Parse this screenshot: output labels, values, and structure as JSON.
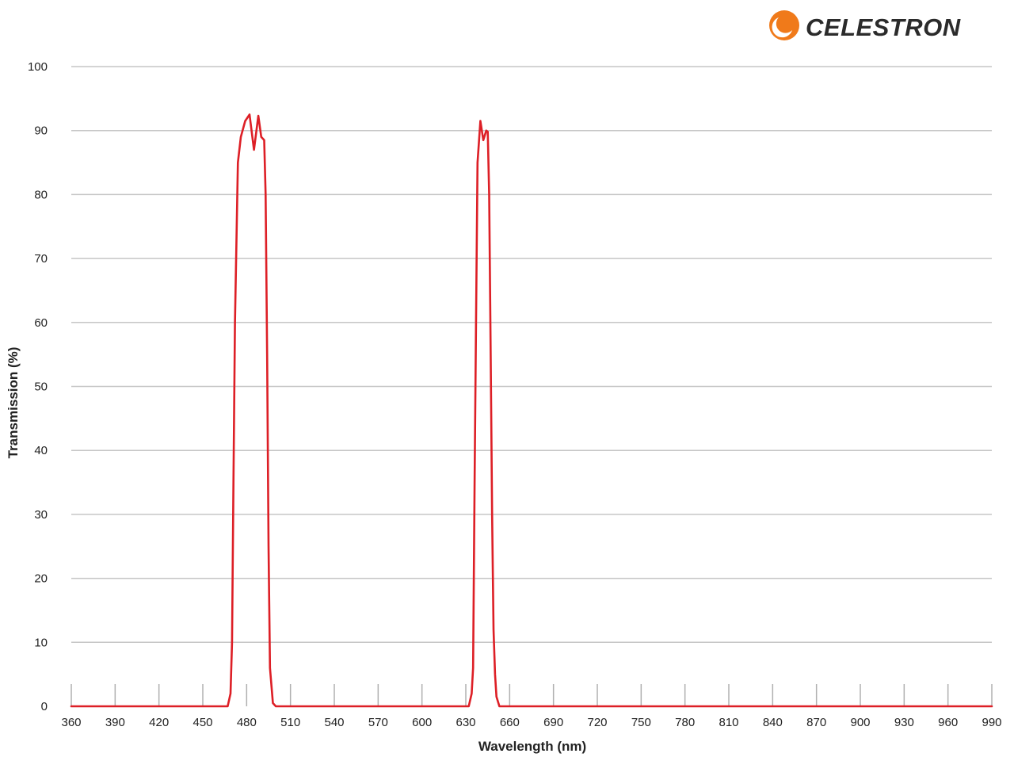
{
  "brand": {
    "name": "CELESTRON",
    "accent_color": "#f07a1a"
  },
  "chart_data": {
    "type": "line",
    "xlabel": "Wavelength (nm)",
    "ylabel": "Transmission (%)",
    "xlim": [
      360,
      990
    ],
    "ylim": [
      0,
      100
    ],
    "x_ticks": [
      360,
      390,
      420,
      450,
      480,
      510,
      540,
      570,
      600,
      630,
      660,
      690,
      720,
      750,
      780,
      810,
      840,
      870,
      900,
      930,
      960,
      990
    ],
    "y_ticks": [
      0,
      10,
      20,
      30,
      40,
      50,
      60,
      70,
      80,
      90,
      100
    ],
    "grid": "horizontal",
    "series": [
      {
        "color": "#dd1f26",
        "points": [
          [
            360,
            0
          ],
          [
            467,
            0
          ],
          [
            469,
            2
          ],
          [
            470,
            10
          ],
          [
            471,
            35
          ],
          [
            472,
            60
          ],
          [
            474,
            85
          ],
          [
            476,
            89
          ],
          [
            479,
            91.5
          ],
          [
            482,
            92.5
          ],
          [
            485,
            87
          ],
          [
            488,
            92.3
          ],
          [
            490,
            89
          ],
          [
            492,
            88.5
          ],
          [
            493,
            80
          ],
          [
            494,
            55
          ],
          [
            495,
            25
          ],
          [
            496,
            6
          ],
          [
            498,
            0.5
          ],
          [
            500,
            0
          ],
          [
            632,
            0
          ],
          [
            634,
            2
          ],
          [
            635,
            6
          ],
          [
            636,
            35
          ],
          [
            637,
            60
          ],
          [
            638,
            85
          ],
          [
            640,
            91.5
          ],
          [
            642,
            88.5
          ],
          [
            644,
            90
          ],
          [
            645,
            89.8
          ],
          [
            646,
            80
          ],
          [
            647,
            55
          ],
          [
            648,
            30
          ],
          [
            649,
            12
          ],
          [
            650,
            5
          ],
          [
            651,
            1.5
          ],
          [
            653,
            0
          ],
          [
            990,
            0
          ]
        ]
      }
    ]
  }
}
